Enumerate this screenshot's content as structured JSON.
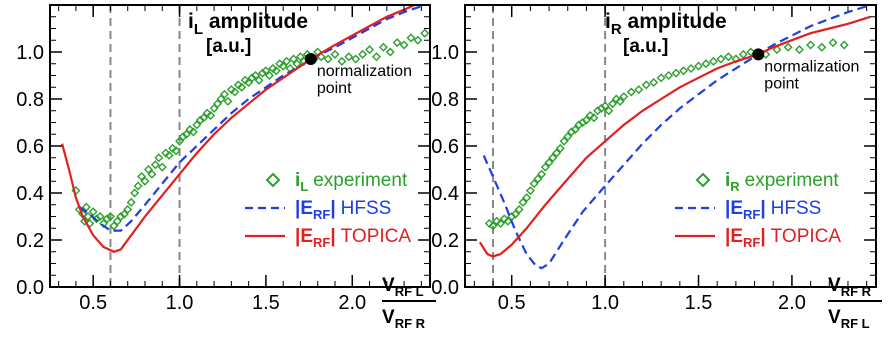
{
  "chart_data": [
    {
      "type": "line",
      "title": "i",
      "title_sub": "L",
      "title_rest": " amplitude",
      "title_line2": "[a.u.]",
      "xlabel_num": "V",
      "xlabel_num_sub": "RF L",
      "xlabel_den": "V",
      "xlabel_den_sub": "RF R",
      "xlim": [
        0.25,
        2.45
      ],
      "ylim": [
        0.0,
        1.2
      ],
      "xticks": [
        "0.5",
        "1.0",
        "1.5",
        "2.0"
      ],
      "yticks": [
        "0.0",
        "0.2",
        "0.4",
        "0.6",
        "0.8",
        "1.0"
      ],
      "vlines": [
        0.6,
        1.0
      ],
      "normalization": {
        "x": 1.76,
        "y": 0.97,
        "label1": "normalization",
        "label2": "point"
      },
      "legend_position": "right",
      "series": [
        {
          "name": "experiment",
          "name_prefix": "i",
          "name_sub": "L",
          "style": "diamond",
          "color": "#2ca02c",
          "points": [
            [
              0.4,
              0.41
            ],
            [
              0.42,
              0.33
            ],
            [
              0.44,
              0.31
            ],
            [
              0.45,
              0.28
            ],
            [
              0.46,
              0.34
            ],
            [
              0.47,
              0.3
            ],
            [
              0.48,
              0.27
            ],
            [
              0.5,
              0.32
            ],
            [
              0.52,
              0.29
            ],
            [
              0.54,
              0.3
            ],
            [
              0.56,
              0.27
            ],
            [
              0.58,
              0.29
            ],
            [
              0.6,
              0.3
            ],
            [
              0.62,
              0.26
            ],
            [
              0.64,
              0.28
            ],
            [
              0.66,
              0.3
            ],
            [
              0.68,
              0.31
            ],
            [
              0.7,
              0.33
            ],
            [
              0.72,
              0.36
            ],
            [
              0.74,
              0.4
            ],
            [
              0.76,
              0.43
            ],
            [
              0.78,
              0.47
            ],
            [
              0.8,
              0.45
            ],
            [
              0.82,
              0.5
            ],
            [
              0.84,
              0.48
            ],
            [
              0.86,
              0.52
            ],
            [
              0.88,
              0.55
            ],
            [
              0.9,
              0.51
            ],
            [
              0.92,
              0.57
            ],
            [
              0.94,
              0.56
            ],
            [
              0.96,
              0.59
            ],
            [
              0.98,
              0.58
            ],
            [
              1.0,
              0.62
            ],
            [
              1.02,
              0.64
            ],
            [
              1.04,
              0.65
            ],
            [
              1.06,
              0.67
            ],
            [
              1.08,
              0.66
            ],
            [
              1.1,
              0.69
            ],
            [
              1.12,
              0.71
            ],
            [
              1.14,
              0.72
            ],
            [
              1.16,
              0.74
            ],
            [
              1.18,
              0.73
            ],
            [
              1.2,
              0.76
            ],
            [
              1.22,
              0.78
            ],
            [
              1.24,
              0.8
            ],
            [
              1.26,
              0.82
            ],
            [
              1.28,
              0.79
            ],
            [
              1.3,
              0.84
            ],
            [
              1.32,
              0.83
            ],
            [
              1.34,
              0.86
            ],
            [
              1.36,
              0.85
            ],
            [
              1.38,
              0.88
            ],
            [
              1.4,
              0.87
            ],
            [
              1.42,
              0.89
            ],
            [
              1.44,
              0.9
            ],
            [
              1.46,
              0.88
            ],
            [
              1.48,
              0.91
            ],
            [
              1.5,
              0.92
            ],
            [
              1.52,
              0.9
            ],
            [
              1.54,
              0.93
            ],
            [
              1.56,
              0.92
            ],
            [
              1.58,
              0.95
            ],
            [
              1.6,
              0.94
            ],
            [
              1.62,
              0.96
            ],
            [
              1.64,
              0.93
            ],
            [
              1.66,
              0.97
            ],
            [
              1.68,
              0.95
            ],
            [
              1.7,
              0.98
            ],
            [
              1.72,
              0.96
            ],
            [
              1.74,
              0.99
            ],
            [
              1.78,
              0.97
            ],
            [
              1.8,
              1.0
            ],
            [
              1.82,
              0.98
            ],
            [
              1.86,
              0.97
            ],
            [
              1.9,
              0.99
            ],
            [
              1.94,
              0.96
            ],
            [
              1.98,
              0.98
            ],
            [
              2.02,
              0.97
            ],
            [
              2.06,
              0.99
            ],
            [
              2.1,
              1.01
            ],
            [
              2.14,
              0.98
            ],
            [
              2.18,
              1.02
            ],
            [
              2.22,
              1.0
            ],
            [
              2.26,
              1.04
            ],
            [
              2.3,
              1.03
            ],
            [
              2.34,
              1.06
            ],
            [
              2.38,
              1.05
            ],
            [
              2.42,
              1.08
            ]
          ]
        },
        {
          "name": "HFSS",
          "name_prefix": "|E",
          "name_sub": "RF",
          "name_suffix": "|",
          "style": "dashed",
          "color": "#1f3fe0",
          "points": [
            [
              0.42,
              0.34
            ],
            [
              0.48,
              0.31
            ],
            [
              0.54,
              0.27
            ],
            [
              0.6,
              0.24
            ],
            [
              0.66,
              0.24
            ],
            [
              0.72,
              0.28
            ],
            [
              0.8,
              0.35
            ],
            [
              0.9,
              0.44
            ],
            [
              1.0,
              0.53
            ],
            [
              1.1,
              0.6
            ],
            [
              1.2,
              0.67
            ],
            [
              1.3,
              0.74
            ],
            [
              1.4,
              0.8
            ],
            [
              1.5,
              0.85
            ],
            [
              1.6,
              0.9
            ],
            [
              1.7,
              0.94
            ],
            [
              1.76,
              0.97
            ],
            [
              1.9,
              1.02
            ],
            [
              2.0,
              1.06
            ],
            [
              2.1,
              1.1
            ],
            [
              2.2,
              1.14
            ],
            [
              2.3,
              1.17
            ],
            [
              2.42,
              1.2
            ]
          ]
        },
        {
          "name": "TOPICA",
          "name_prefix": "|E",
          "name_sub": "RF",
          "name_suffix": "|",
          "style": "solid",
          "color": "#e02020",
          "points": [
            [
              0.32,
              0.61
            ],
            [
              0.36,
              0.5
            ],
            [
              0.4,
              0.38
            ],
            [
              0.44,
              0.3
            ],
            [
              0.5,
              0.22
            ],
            [
              0.56,
              0.17
            ],
            [
              0.62,
              0.15
            ],
            [
              0.66,
              0.16
            ],
            [
              0.72,
              0.22
            ],
            [
              0.8,
              0.3
            ],
            [
              0.9,
              0.39
            ],
            [
              1.0,
              0.48
            ],
            [
              1.1,
              0.57
            ],
            [
              1.2,
              0.65
            ],
            [
              1.3,
              0.72
            ],
            [
              1.4,
              0.78
            ],
            [
              1.5,
              0.84
            ],
            [
              1.6,
              0.89
            ],
            [
              1.7,
              0.94
            ],
            [
              1.76,
              0.97
            ],
            [
              1.9,
              1.03
            ],
            [
              2.0,
              1.07
            ],
            [
              2.1,
              1.11
            ],
            [
              2.2,
              1.15
            ],
            [
              2.3,
              1.18
            ],
            [
              2.42,
              1.22
            ]
          ]
        }
      ]
    },
    {
      "type": "line",
      "title": "i",
      "title_sub": "R",
      "title_rest": " amplitude",
      "title_line2": "[a.u.]",
      "xlabel_num": "V",
      "xlabel_num_sub": "RF R",
      "xlabel_den": "V",
      "xlabel_den_sub": "RF L",
      "xlim": [
        0.25,
        2.45
      ],
      "ylim": [
        0.0,
        1.2
      ],
      "xticks": [
        "0.5",
        "1.0",
        "1.5",
        "2.0"
      ],
      "yticks": [
        "0.0",
        "0.2",
        "0.4",
        "0.6",
        "0.8",
        "1.0"
      ],
      "vlines": [
        0.4,
        1.0
      ],
      "normalization": {
        "x": 1.82,
        "y": 0.99,
        "label1": "normalization",
        "label2": "point"
      },
      "legend_position": "right",
      "series": [
        {
          "name": "experiment",
          "name_prefix": "i",
          "name_sub": "R",
          "style": "diamond",
          "color": "#2ca02c",
          "points": [
            [
              0.38,
              0.27
            ],
            [
              0.4,
              0.26
            ],
            [
              0.42,
              0.28
            ],
            [
              0.44,
              0.27
            ],
            [
              0.46,
              0.29
            ],
            [
              0.48,
              0.28
            ],
            [
              0.5,
              0.3
            ],
            [
              0.52,
              0.31
            ],
            [
              0.54,
              0.33
            ],
            [
              0.56,
              0.36
            ],
            [
              0.58,
              0.38
            ],
            [
              0.6,
              0.41
            ],
            [
              0.62,
              0.44
            ],
            [
              0.64,
              0.46
            ],
            [
              0.66,
              0.48
            ],
            [
              0.68,
              0.51
            ],
            [
              0.7,
              0.53
            ],
            [
              0.72,
              0.55
            ],
            [
              0.74,
              0.57
            ],
            [
              0.76,
              0.59
            ],
            [
              0.78,
              0.62
            ],
            [
              0.8,
              0.64
            ],
            [
              0.82,
              0.66
            ],
            [
              0.84,
              0.67
            ],
            [
              0.86,
              0.69
            ],
            [
              0.88,
              0.7
            ],
            [
              0.9,
              0.71
            ],
            [
              0.92,
              0.73
            ],
            [
              0.94,
              0.72
            ],
            [
              0.96,
              0.75
            ],
            [
              0.98,
              0.76
            ],
            [
              1.0,
              0.77
            ],
            [
              1.02,
              0.75
            ],
            [
              1.04,
              0.78
            ],
            [
              1.06,
              0.8
            ],
            [
              1.08,
              0.79
            ],
            [
              1.1,
              0.81
            ],
            [
              1.14,
              0.83
            ],
            [
              1.18,
              0.84
            ],
            [
              1.22,
              0.86
            ],
            [
              1.26,
              0.87
            ],
            [
              1.3,
              0.89
            ],
            [
              1.34,
              0.9
            ],
            [
              1.38,
              0.91
            ],
            [
              1.42,
              0.92
            ],
            [
              1.46,
              0.93
            ],
            [
              1.5,
              0.94
            ],
            [
              1.54,
              0.95
            ],
            [
              1.58,
              0.96
            ],
            [
              1.62,
              0.97
            ],
            [
              1.66,
              0.98
            ],
            [
              1.7,
              0.97
            ],
            [
              1.74,
              0.99
            ],
            [
              1.78,
              1.0
            ],
            [
              1.86,
              0.99
            ],
            [
              1.92,
              1.01
            ],
            [
              1.98,
              1.02
            ],
            [
              2.04,
              1.01
            ],
            [
              2.1,
              1.03
            ],
            [
              2.16,
              1.02
            ],
            [
              2.22,
              1.04
            ],
            [
              2.28,
              1.03
            ]
          ]
        },
        {
          "name": "HFSS",
          "name_prefix": "|E",
          "name_sub": "RF",
          "name_suffix": "|",
          "style": "dashed",
          "color": "#1f3fe0",
          "points": [
            [
              0.35,
              0.56
            ],
            [
              0.4,
              0.47
            ],
            [
              0.46,
              0.36
            ],
            [
              0.52,
              0.24
            ],
            [
              0.58,
              0.14
            ],
            [
              0.63,
              0.09
            ],
            [
              0.66,
              0.08
            ],
            [
              0.7,
              0.1
            ],
            [
              0.78,
              0.2
            ],
            [
              0.88,
              0.32
            ],
            [
              1.0,
              0.43
            ],
            [
              1.1,
              0.52
            ],
            [
              1.2,
              0.61
            ],
            [
              1.3,
              0.69
            ],
            [
              1.4,
              0.76
            ],
            [
              1.5,
              0.82
            ],
            [
              1.6,
              0.88
            ],
            [
              1.7,
              0.93
            ],
            [
              1.82,
              0.99
            ],
            [
              1.9,
              1.03
            ],
            [
              2.0,
              1.07
            ],
            [
              2.1,
              1.11
            ],
            [
              2.2,
              1.14
            ],
            [
              2.3,
              1.17
            ],
            [
              2.42,
              1.2
            ]
          ]
        },
        {
          "name": "TOPICA",
          "name_prefix": "|E",
          "name_sub": "RF",
          "name_suffix": "|",
          "style": "solid",
          "color": "#e02020",
          "points": [
            [
              0.33,
              0.19
            ],
            [
              0.37,
              0.14
            ],
            [
              0.4,
              0.13
            ],
            [
              0.44,
              0.14
            ],
            [
              0.5,
              0.18
            ],
            [
              0.58,
              0.25
            ],
            [
              0.68,
              0.35
            ],
            [
              0.8,
              0.46
            ],
            [
              0.9,
              0.55
            ],
            [
              1.0,
              0.62
            ],
            [
              1.1,
              0.69
            ],
            [
              1.2,
              0.75
            ],
            [
              1.3,
              0.8
            ],
            [
              1.4,
              0.85
            ],
            [
              1.5,
              0.89
            ],
            [
              1.6,
              0.93
            ],
            [
              1.7,
              0.96
            ],
            [
              1.82,
              0.99
            ],
            [
              1.9,
              1.02
            ],
            [
              2.0,
              1.05
            ],
            [
              2.1,
              1.08
            ],
            [
              2.2,
              1.1
            ],
            [
              2.3,
              1.12
            ],
            [
              2.42,
              1.15
            ]
          ]
        }
      ]
    }
  ]
}
